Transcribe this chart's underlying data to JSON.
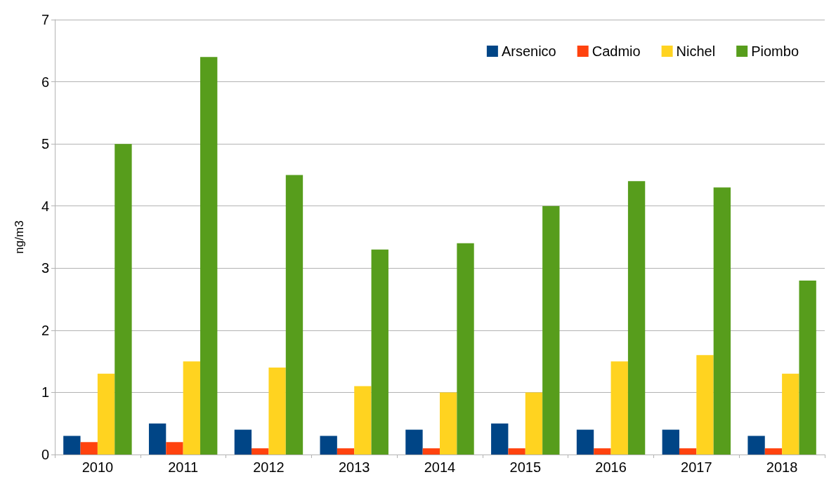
{
  "chart_data": {
    "type": "bar",
    "ylabel": "ng/m3",
    "categories": [
      "2010",
      "2011",
      "2012",
      "2013",
      "2014",
      "2015",
      "2016",
      "2017",
      "2018"
    ],
    "series": [
      {
        "name": "Arsenico",
        "color": "#004586",
        "values": [
          0.3,
          0.5,
          0.4,
          0.3,
          0.4,
          0.5,
          0.4,
          0.4,
          0.3
        ]
      },
      {
        "name": "Cadmio",
        "color": "#ff420e",
        "values": [
          0.2,
          0.2,
          0.1,
          0.1,
          0.1,
          0.1,
          0.1,
          0.1,
          0.1
        ]
      },
      {
        "name": "Nichel",
        "color": "#ffd320",
        "values": [
          1.3,
          1.5,
          1.4,
          1.1,
          1.0,
          1.0,
          1.5,
          1.6,
          1.3
        ]
      },
      {
        "name": "Piombo",
        "color": "#579d1c",
        "values": [
          5.0,
          6.4,
          4.5,
          3.3,
          3.4,
          4.0,
          4.4,
          4.3,
          2.8
        ]
      }
    ],
    "ylim": [
      0,
      7
    ],
    "yticks": [
      0,
      1,
      2,
      3,
      4,
      5,
      6,
      7
    ],
    "grid": "y",
    "legend": "top right"
  }
}
